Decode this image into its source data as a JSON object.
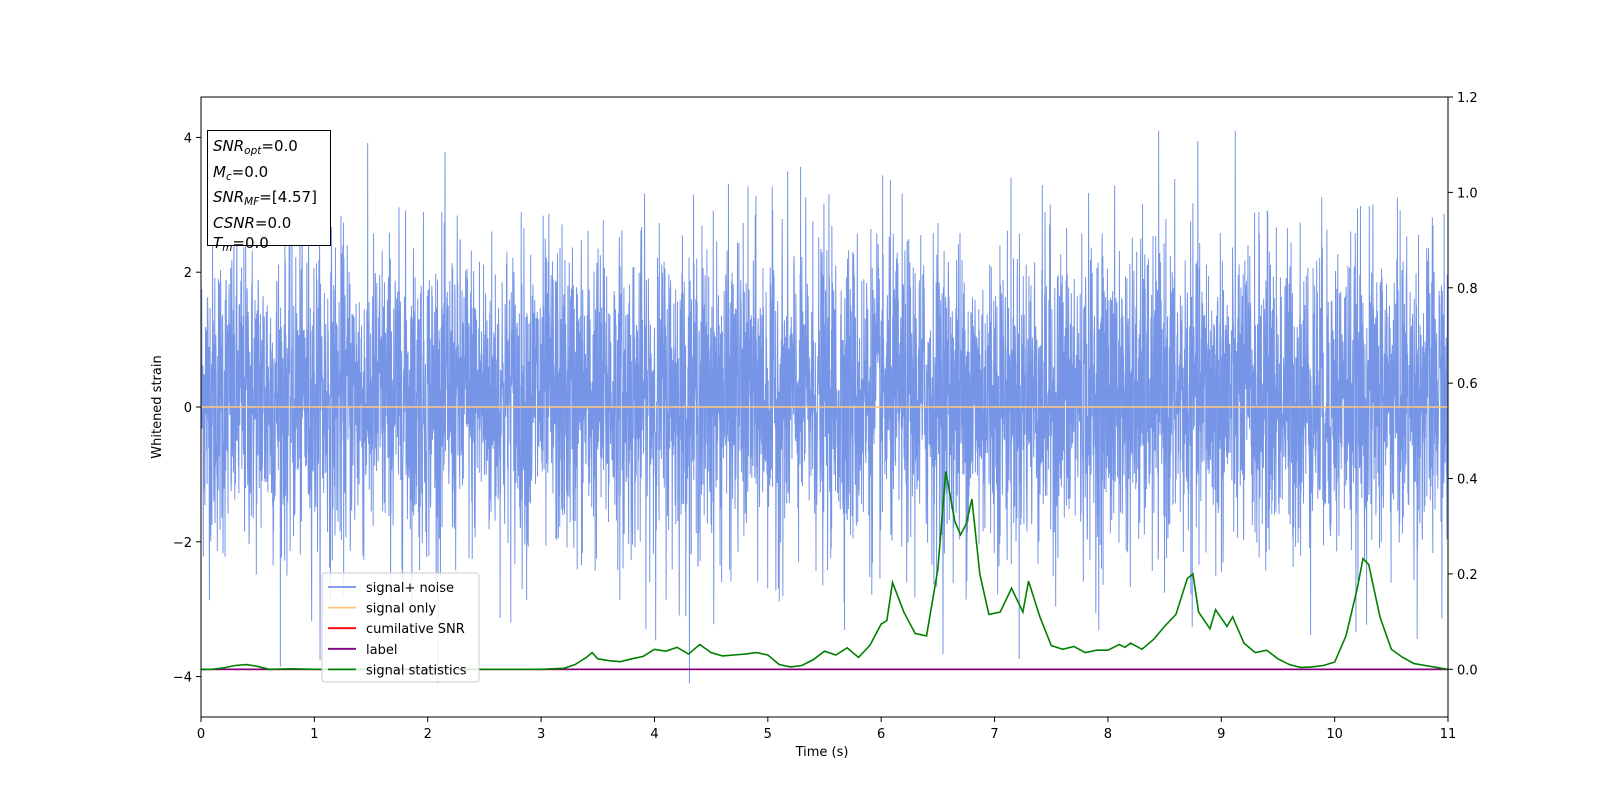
{
  "info_box": {
    "snr_opt": {
      "symbol": "SNR",
      "sub": "opt",
      "value": "=0.0"
    },
    "mc": {
      "symbol": "M",
      "sub": "c",
      "value": "=0.0"
    },
    "snr_mf": {
      "symbol": "SNR",
      "sub": "MF",
      "value": "=[4.57]"
    },
    "csnr": {
      "symbol": "CSNR",
      "value": "=0.0"
    },
    "tm": {
      "symbol": "T",
      "sub": "m",
      "value": "=0.0"
    }
  },
  "chart_data": {
    "type": "line",
    "xlabel": "Time (s)",
    "ylabel": "Whitened strain",
    "xlim": [
      0,
      11
    ],
    "ylim": [
      -4.6,
      4.6
    ],
    "y2lim": [
      -0.1,
      1.2
    ],
    "x_ticks": [
      "0",
      "1",
      "2",
      "3",
      "4",
      "5",
      "6",
      "7",
      "8",
      "9",
      "10",
      "11"
    ],
    "y_ticks": [
      "4",
      "2",
      "0",
      "−2",
      "−4"
    ],
    "y2_ticks": [
      "1.2",
      "1.0",
      "0.8",
      "0.6",
      "0.4",
      "0.2",
      "0.0"
    ],
    "legend_placement": "lower-left",
    "grid": false,
    "series": [
      {
        "name": "signal+ noise",
        "color": "#6f8fe6",
        "axis": "left",
        "description": "whitened noise, roughly within [-3, 4]"
      },
      {
        "name": "signal only",
        "color": "#ffc878",
        "axis": "left",
        "x": [
          0,
          11
        ],
        "y": [
          0,
          0
        ]
      },
      {
        "name": "cumilative SNR",
        "color": "#ff0000",
        "axis": "right",
        "x": [
          0,
          11
        ],
        "y": [
          0,
          0
        ]
      },
      {
        "name": "label",
        "color": "#800080",
        "axis": "right",
        "x": [
          0,
          11
        ],
        "y": [
          0,
          0
        ]
      },
      {
        "name": "signal statistics",
        "color": "#008000",
        "axis": "right",
        "x": [
          0.0,
          0.1,
          0.2,
          0.3,
          0.4,
          0.5,
          0.6,
          0.8,
          1.0,
          1.2,
          1.5,
          2.0,
          2.5,
          3.0,
          3.2,
          3.3,
          3.4,
          3.45,
          3.5,
          3.6,
          3.7,
          3.8,
          3.9,
          4.0,
          4.1,
          4.2,
          4.3,
          4.4,
          4.5,
          4.6,
          4.7,
          4.8,
          4.9,
          5.0,
          5.1,
          5.2,
          5.3,
          5.4,
          5.5,
          5.6,
          5.7,
          5.8,
          5.9,
          6.0,
          6.05,
          6.1,
          6.2,
          6.3,
          6.4,
          6.5,
          6.57,
          6.65,
          6.7,
          6.75,
          6.8,
          6.87,
          6.95,
          7.05,
          7.15,
          7.25,
          7.3,
          7.4,
          7.5,
          7.6,
          7.7,
          7.8,
          7.9,
          8.0,
          8.1,
          8.15,
          8.2,
          8.3,
          8.4,
          8.5,
          8.6,
          8.7,
          8.75,
          8.8,
          8.9,
          8.95,
          9.05,
          9.1,
          9.2,
          9.3,
          9.4,
          9.5,
          9.6,
          9.7,
          9.8,
          9.9,
          10.0,
          10.1,
          10.2,
          10.25,
          10.3,
          10.4,
          10.5,
          10.6,
          10.7,
          10.8,
          10.9,
          11.0
        ],
        "y": [
          0.0,
          0.0,
          0.003,
          0.008,
          0.01,
          0.006,
          0.0,
          0.001,
          0.0,
          0.0,
          0.0,
          0.001,
          0.0,
          0.0,
          0.002,
          0.01,
          0.025,
          0.035,
          0.022,
          0.018,
          0.016,
          0.022,
          0.027,
          0.042,
          0.038,
          0.046,
          0.032,
          0.052,
          0.035,
          0.028,
          0.03,
          0.032,
          0.035,
          0.03,
          0.01,
          0.005,
          0.008,
          0.02,
          0.038,
          0.03,
          0.045,
          0.025,
          0.05,
          0.095,
          0.102,
          0.182,
          0.12,
          0.075,
          0.07,
          0.21,
          0.415,
          0.31,
          0.282,
          0.305,
          0.357,
          0.2,
          0.115,
          0.12,
          0.17,
          0.12,
          0.185,
          0.11,
          0.05,
          0.042,
          0.048,
          0.035,
          0.04,
          0.04,
          0.052,
          0.046,
          0.055,
          0.042,
          0.062,
          0.09,
          0.115,
          0.19,
          0.2,
          0.12,
          0.085,
          0.125,
          0.09,
          0.11,
          0.055,
          0.035,
          0.04,
          0.022,
          0.01,
          0.004,
          0.005,
          0.008,
          0.015,
          0.07,
          0.17,
          0.232,
          0.22,
          0.11,
          0.042,
          0.025,
          0.012,
          0.008,
          0.004,
          0.0
        ]
      }
    ]
  }
}
